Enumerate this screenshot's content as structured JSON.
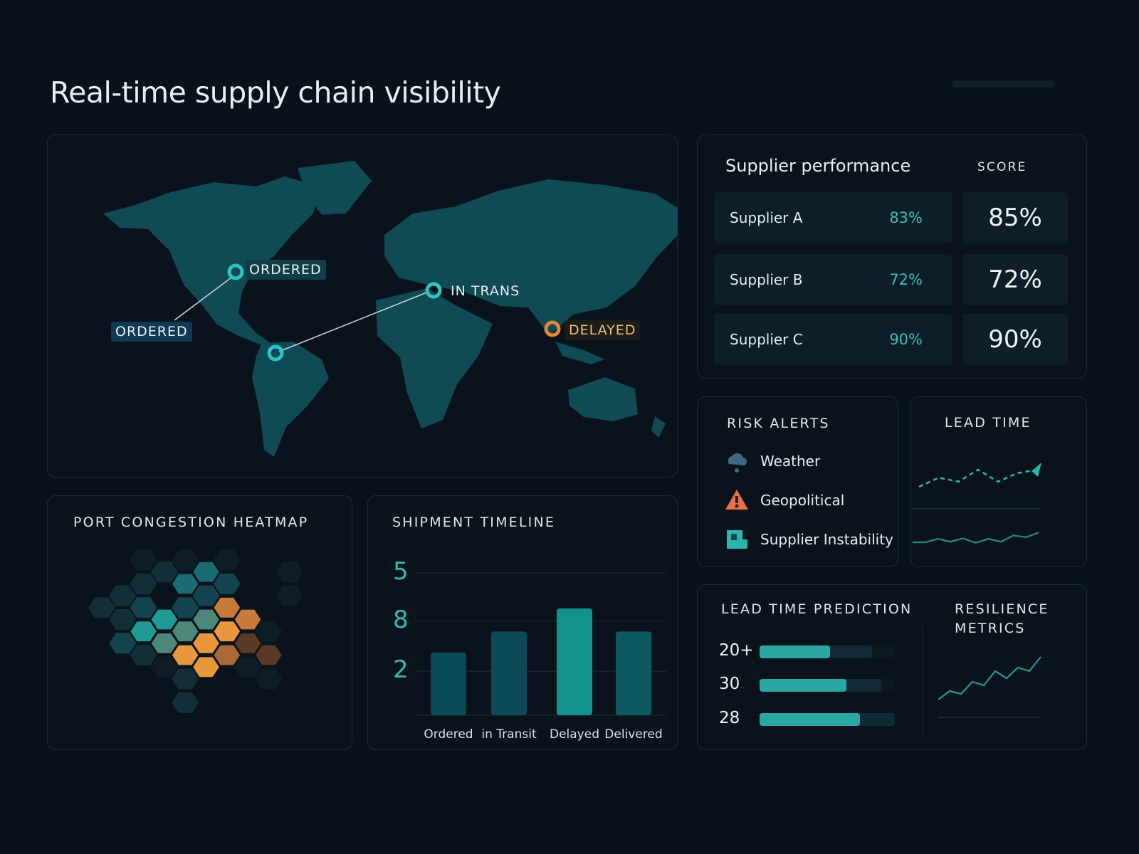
{
  "header": {
    "title": "Real-time supply chain visibility"
  },
  "colors": {
    "background": "#09111a",
    "accent": "#2ab5b0",
    "warning": "#e8892f",
    "land": "#0f4a55"
  },
  "map": {
    "markers": [
      {
        "label": "ORDERED",
        "status": "ordered",
        "color": "#2ec4c4"
      },
      {
        "label": "ORDERED",
        "status": "ordered",
        "color": "#2ec4c4"
      },
      {
        "label": "IN TRANS",
        "status": "in-transit",
        "color": "#2ec4c4"
      },
      {
        "label": "DELAYED",
        "status": "delayed",
        "color": "#e8892f"
      }
    ]
  },
  "supplier": {
    "title": "Supplier performance",
    "score_header": "SCORE",
    "rows": [
      {
        "name": "Supplier A",
        "pct": "83%",
        "score": "85%"
      },
      {
        "name": "Supplier B",
        "pct": "72%",
        "score": "72%"
      },
      {
        "name": "Supplier C",
        "pct": "90%",
        "score": "90%"
      }
    ]
  },
  "risk": {
    "title": "RISK ALERTS",
    "items": [
      {
        "label": "Weather",
        "icon": "cloud-rain-icon"
      },
      {
        "label": "Geopolitical",
        "icon": "warning-triangle-icon"
      },
      {
        "label": "Supplier Instability",
        "icon": "factory-icon"
      }
    ]
  },
  "lead_time": {
    "title": "LEAD TIME",
    "dashed": [
      2,
      3.6,
      2.9,
      5,
      2.9,
      4.4,
      5
    ],
    "solid": [
      1,
      1,
      1.6,
      1.1,
      1.7,
      0.9,
      1.6,
      1.1,
      2.2,
      1.9,
      2.7
    ]
  },
  "prediction": {
    "title": "LEAD TIME PREDICTION",
    "rows": [
      {
        "label": "20+",
        "fill": 0.52,
        "secondary": 0.83
      },
      {
        "label": "30",
        "fill": 0.64,
        "secondary": 0.9
      },
      {
        "label": "28",
        "fill": 0.74,
        "secondary": 1.0
      }
    ]
  },
  "resilience": {
    "title_line1": "RESILIENCE",
    "title_line2": "METRICS",
    "values": [
      1,
      2.2,
      1.8,
      3.5,
      3,
      5,
      4,
      5.5,
      5,
      7
    ]
  },
  "heatmap": {
    "title": "PORT CONGESTION HEATMAP",
    "palette": [
      "none",
      "#0f1e26",
      "#122f38",
      "#12434e",
      "#1a6b72",
      "#1f9a94",
      "#4d877a",
      "#e8973a",
      "#c9793a",
      "#a9683a",
      "#5a3a26"
    ],
    "levels": [
      [
        0,
        0,
        1,
        2,
        1,
        4,
        1,
        0,
        0,
        1
      ],
      [
        0,
        2,
        2,
        0,
        4,
        3,
        3,
        0,
        0,
        1
      ],
      [
        2,
        2,
        3,
        5,
        3,
        6,
        8,
        8,
        0,
        0
      ],
      [
        0,
        3,
        5,
        6,
        6,
        7,
        7,
        10,
        1,
        0
      ],
      [
        0,
        0,
        2,
        1,
        7,
        7,
        9,
        1,
        10,
        0
      ],
      [
        0,
        0,
        0,
        0,
        2,
        0,
        0,
        0,
        1,
        0
      ],
      [
        0,
        0,
        0,
        0,
        2,
        0,
        0,
        0,
        0,
        0
      ]
    ]
  },
  "chart_data": {
    "type": "bar",
    "title": "SHIPMENT TIMELINE",
    "categories": [
      "Ordered",
      "in Transit",
      "Delayed",
      "Delivered"
    ],
    "values": [
      3.0,
      4.0,
      5.1,
      4.0
    ],
    "ylim": [
      0,
      7
    ],
    "ticks": [
      {
        "label": "5",
        "value": 6.8
      },
      {
        "label": "8",
        "value": 4.5
      },
      {
        "label": "2",
        "value": 2.1
      }
    ],
    "colors": [
      "#0c4a55",
      "#0c4a55",
      "#13918b",
      "#0b5a5f"
    ],
    "grid": true
  }
}
